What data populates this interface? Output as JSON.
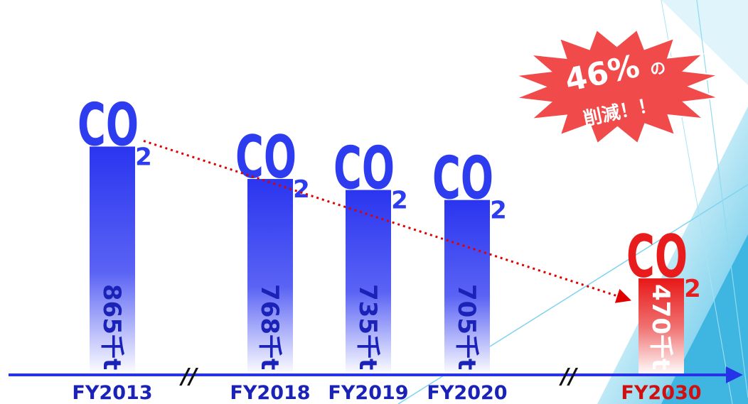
{
  "chart_data": {
    "type": "bar",
    "categories": [
      "FY2013",
      "FY2018",
      "FY2019",
      "FY2020",
      "FY2030"
    ],
    "values": [
      865,
      768,
      735,
      705,
      470
    ],
    "value_labels": [
      "865千t",
      "768千t",
      "735千t",
      "705千t",
      "470千t"
    ],
    "bar_icon_text": {
      "main": "CO",
      "subscript": "2"
    },
    "axis_break_symbol": "//",
    "callout": {
      "percent": "46%",
      "suffix": "の",
      "text": "削減！！"
    },
    "colors": {
      "blue": "#2e3cf0",
      "red": "#e81c1c",
      "axis": "#2633e8",
      "trend": "#e00000",
      "burst": "#f04646",
      "accent_bg": "#5cc6ea"
    },
    "trend_line": {
      "from": "FY2013",
      "to": "FY2030",
      "style": "dotted-arrow"
    }
  }
}
